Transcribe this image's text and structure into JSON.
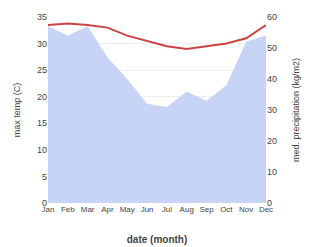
{
  "chart_data": {
    "type": "line",
    "categories": [
      "Jan",
      "Feb",
      "Mar",
      "Apr",
      "May",
      "Jun",
      "Jul",
      "Aug",
      "Sep",
      "Oct",
      "Nov",
      "Dec"
    ],
    "series": [
      {
        "type": "area",
        "axis": "y2",
        "color": "#c8d4f5",
        "values": [
          57,
          54,
          57,
          47,
          40,
          32,
          31,
          36,
          33,
          38,
          52,
          54
        ]
      },
      {
        "type": "line",
        "color": "#cc4444",
        "values": [
          33.5,
          33.8,
          33.5,
          33.0,
          31.5,
          30.5,
          29.5,
          29.0,
          29.5,
          30.0,
          31.0,
          33.5
        ]
      }
    ],
    "xlabel": "date (month)",
    "ylabel": "max temp (C)",
    "y2label": "med. precipitation (kg/m2)",
    "ylim": [
      0,
      35
    ],
    "yticks": [
      0,
      5,
      10,
      15,
      20,
      25,
      30,
      35
    ],
    "y2lim": [
      0,
      60
    ],
    "y2ticks": [
      0,
      10,
      20,
      30,
      40,
      50,
      60
    ],
    "grid": true
  }
}
